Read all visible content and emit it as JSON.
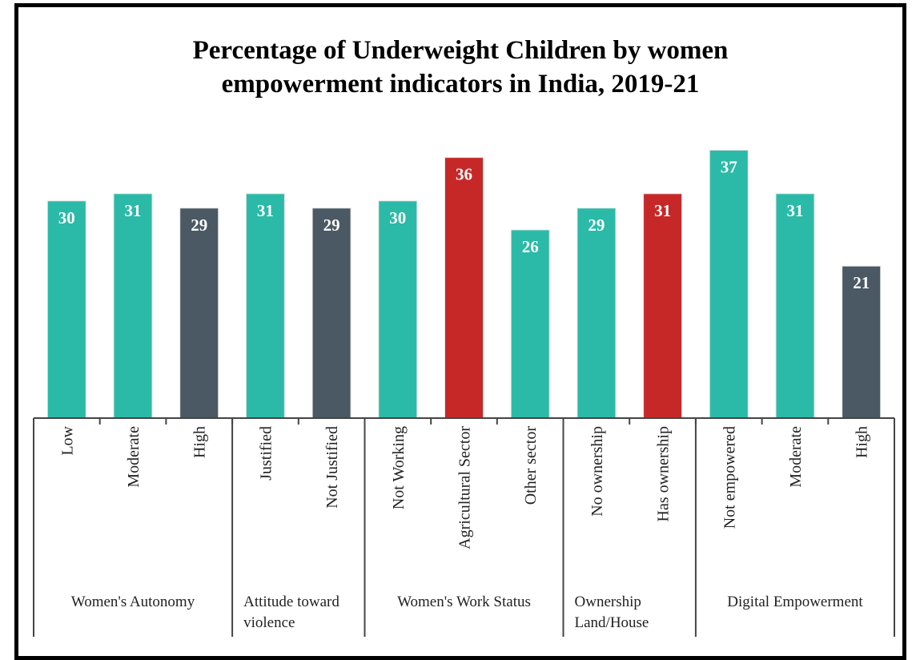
{
  "chart_data": {
    "type": "bar",
    "title": "Percentage of Underweight Children by women empowerment indicators in India, 2019-21",
    "title_lines": [
      "Percentage of Underweight Children by women",
      "empowerment indicators in India, 2019-21"
    ],
    "xlabel": "",
    "ylabel": "",
    "ylim": [
      0,
      40
    ],
    "grid": false,
    "legend": "none",
    "colors": {
      "teal": "#2bbaa8",
      "slate": "#4a5963",
      "red": "#c62828"
    },
    "groups": [
      {
        "label_lines": [
          "Women's Autonomy"
        ],
        "bars": [
          {
            "category": "Low",
            "value": 30,
            "color": "teal"
          },
          {
            "category": "Moderate",
            "value": 31,
            "color": "teal"
          },
          {
            "category": "High",
            "value": 29,
            "color": "slate"
          }
        ]
      },
      {
        "label_lines": [
          "Attitude toward",
          "violence"
        ],
        "bars": [
          {
            "category": "Justified",
            "value": 31,
            "color": "teal"
          },
          {
            "category": "Not Justified",
            "value": 29,
            "color": "slate"
          }
        ]
      },
      {
        "label_lines": [
          "Women's Work Status"
        ],
        "bars": [
          {
            "category": "Not Working",
            "value": 30,
            "color": "teal"
          },
          {
            "category": "Agricultural Sector",
            "value": 36,
            "color": "red"
          },
          {
            "category": "Other sector",
            "value": 26,
            "color": "teal"
          }
        ]
      },
      {
        "label_lines": [
          "Ownership",
          "Land/House"
        ],
        "bars": [
          {
            "category": "No ownership",
            "value": 29,
            "color": "teal"
          },
          {
            "category": "Has ownership",
            "value": 31,
            "color": "red"
          }
        ]
      },
      {
        "label_lines": [
          "Digital Empowerment"
        ],
        "bars": [
          {
            "category": "Not empowered",
            "value": 37,
            "color": "teal"
          },
          {
            "category": "Moderate",
            "value": 31,
            "color": "teal"
          },
          {
            "category": "High",
            "value": 21,
            "color": "slate"
          }
        ]
      }
    ]
  }
}
